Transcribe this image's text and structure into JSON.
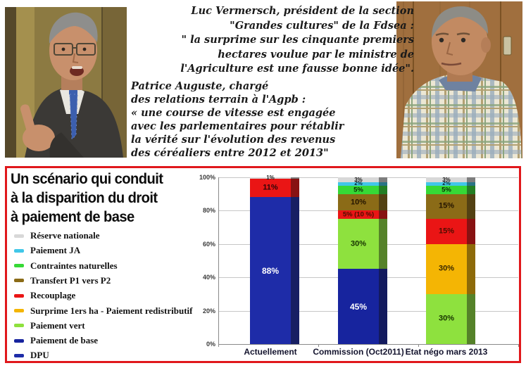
{
  "captions": {
    "luc": {
      "lines": [
        "Luc Vermersch, président de la section",
        "\"Grandes cultures\" de la Fdsea :",
        "\" la surprime sur les cinquante premiers",
        "hectares voulue par le ministre de",
        "l'Agriculture est une fausse bonne idée\"."
      ]
    },
    "patrice": {
      "lines": [
        "Patrice Auguste, chargé",
        "des relations terrain à l'Agpb :",
        "« une course de vitesse est engagée",
        "avec les parlementaires pour rétablir",
        "la vérité sur l'évolution des revenus",
        "des céréaliers entre 2012 et 2013\""
      ]
    }
  },
  "chart_panel": {
    "title_lines": [
      "Un scénario qui conduit",
      "à la disparition du droit",
      "à paiement de base"
    ],
    "border_color": "#e0181c"
  },
  "chart_data": {
    "type": "bar",
    "stacked": true,
    "title": "Un scénario qui conduit à la disparition du droit à paiement de base",
    "categories": [
      "Actuellement",
      "Commission (Oct2011)",
      "Etat négo mars 2013"
    ],
    "y_axis": {
      "ticks": [
        "0%",
        "20%",
        "40%",
        "60%",
        "80%",
        "100%"
      ],
      "range": [
        0,
        100
      ],
      "grid": true
    },
    "legend_position": "left",
    "legend": [
      {
        "label": "Réserve nationale",
        "color": "#d8d8d8"
      },
      {
        "label": "Paiement JA",
        "color": "#41c7e8"
      },
      {
        "label": "Contraintes naturelles",
        "color": "#36d936"
      },
      {
        "label": "Transfert P1 vers P2",
        "color": "#8b6b17"
      },
      {
        "label": "Recouplage",
        "color": "#ea1515"
      },
      {
        "label": "Surprime 1ers ha - Paiement redistributif",
        "color": "#f4b504"
      },
      {
        "label": "Paiement vert",
        "color": "#8ee13e"
      },
      {
        "label": "Paiement de base",
        "color": "#17249e"
      },
      {
        "label": "DPU",
        "color": "#1e2ca8"
      }
    ],
    "bars": [
      {
        "category": "Actuellement",
        "segments": [
          {
            "name": "DPU",
            "value": 88,
            "label": "88%",
            "color": "#1e2ca8",
            "text": "#ffffff"
          },
          {
            "name": "Recouplage",
            "value": 11,
            "label": "11%",
            "color": "#ea1515",
            "text": "#2e0508"
          },
          {
            "name": "Réserve nationale",
            "value": 1,
            "label": "1%",
            "color": "#d8d8d8",
            "text": "#1a1a1a"
          }
        ]
      },
      {
        "category": "Commission (Oct2011)",
        "segments": [
          {
            "name": "Paiement de base",
            "value": 45,
            "label": "45%",
            "color": "#17249e",
            "text": "#ffffff"
          },
          {
            "name": "Paiement vert",
            "value": 30,
            "label": "30%",
            "color": "#8ee13e",
            "text": "#173300"
          },
          {
            "name": "Recouplage",
            "value": 5,
            "label": "5% (10 %)",
            "color": "#ea1515",
            "text": "#4d0d00"
          },
          {
            "name": "Transfert P1 vers P2",
            "value": 10,
            "label": "10%",
            "color": "#8b6b17",
            "text": "#241500"
          },
          {
            "name": "Contraintes naturelles",
            "value": 5,
            "label": "5%",
            "color": "#36d936",
            "text": "#0c2a00"
          },
          {
            "name": "Paiement JA",
            "value": 2,
            "label": "2%",
            "color": "#41c7e8",
            "text": "#092733"
          },
          {
            "name": "Réserve nationale",
            "value": 3,
            "label": "3%",
            "color": "#d8d8d8",
            "text": "#1a1a1a"
          }
        ]
      },
      {
        "category": "Etat négo mars 2013",
        "segments": [
          {
            "name": "Paiement vert",
            "value": 30,
            "label": "30%",
            "color": "#8ee13e",
            "text": "#173300"
          },
          {
            "name": "Surprime 1ers ha - Paiement redistributif",
            "value": 30,
            "label": "30%",
            "color": "#f4b504",
            "text": "#3a2800"
          },
          {
            "name": "Recouplage",
            "value": 15,
            "label": "15%",
            "color": "#ea1515",
            "text": "#4d0d00"
          },
          {
            "name": "Transfert P1 vers P2",
            "value": 15,
            "label": "15%",
            "color": "#8b6b17",
            "text": "#241500"
          },
          {
            "name": "Contraintes naturelles",
            "value": 5,
            "label": "5%",
            "color": "#36d936",
            "text": "#0c2a00"
          },
          {
            "name": "Paiement JA",
            "value": 2,
            "label": "2%",
            "color": "#41c7e8",
            "text": "#092733"
          },
          {
            "name": "Réserve nationale",
            "value": 3,
            "label": "3%",
            "color": "#d8d8d8",
            "text": "#1a1a1a"
          }
        ]
      }
    ]
  }
}
